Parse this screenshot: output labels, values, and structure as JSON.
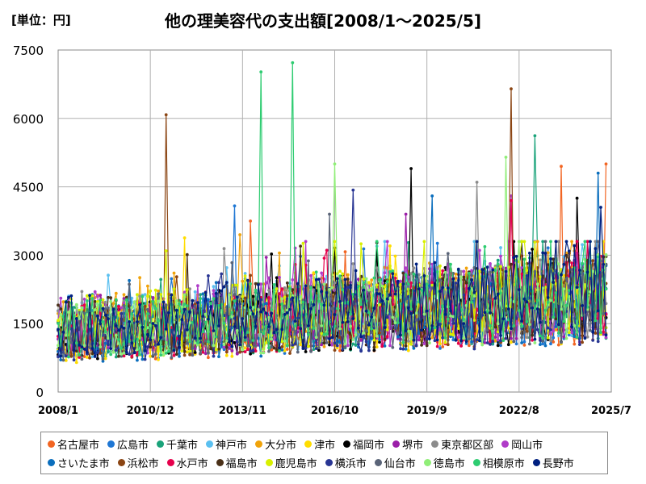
{
  "unit_label": "[単位：円]",
  "chart_data": {
    "type": "line",
    "title": "他の理美容代の支出額[2008/1～2025/5]",
    "xlabel": "",
    "ylabel": "",
    "x_ticks": [
      "2008/1",
      "2010/12",
      "2013/11",
      "2016/10",
      "2019/9",
      "2022/8",
      "2025/7"
    ],
    "x_range": [
      "2008/1",
      "2025/7"
    ],
    "ylim": [
      0,
      7500
    ],
    "y_ticks": [
      0,
      1500,
      3000,
      4500,
      6000,
      7500
    ],
    "grid": true,
    "legend_position": "bottom",
    "series": [
      {
        "name": "名古屋市",
        "color": "#f26522",
        "peaks": [
          {
            "x": "2014/2",
            "y": 3750
          },
          {
            "x": "2023/12",
            "y": 4950
          },
          {
            "x": "2025/5",
            "y": 5000
          }
        ]
      },
      {
        "name": "広島市",
        "color": "#1f77d4",
        "peaks": [
          {
            "x": "2013/8",
            "y": 4080
          }
        ]
      },
      {
        "name": "千葉市",
        "color": "#1aa37a",
        "peaks": [
          {
            "x": "2023/2",
            "y": 5620
          }
        ]
      },
      {
        "name": "神戸市",
        "color": "#5bc0f0",
        "peaks": [
          {
            "x": "2018/2",
            "y": 3200
          }
        ]
      },
      {
        "name": "大分市",
        "color": "#f0a30a",
        "peaks": [
          {
            "x": "2013/10",
            "y": 3450
          }
        ]
      },
      {
        "name": "津市",
        "color": "#ffdd00",
        "peaks": [
          {
            "x": "2012/1",
            "y": 3380
          }
        ]
      },
      {
        "name": "福岡市",
        "color": "#000000",
        "peaks": [
          {
            "x": "2019/3",
            "y": 4900
          },
          {
            "x": "2024/6",
            "y": 4250
          }
        ]
      },
      {
        "name": "堺市",
        "color": "#9b1fa8",
        "peaks": [
          {
            "x": "2019/1",
            "y": 3900
          }
        ]
      },
      {
        "name": "東京都区部",
        "color": "#8c8c8c",
        "peaks": [
          {
            "x": "2021/4",
            "y": 4600
          }
        ]
      },
      {
        "name": "岡山市",
        "color": "#b03cc8",
        "peaks": [
          {
            "x": "2022/5",
            "y": 4300
          }
        ]
      },
      {
        "name": "さいたま市",
        "color": "#0a6ebd",
        "peaks": [
          {
            "x": "2019/11",
            "y": 4300
          },
          {
            "x": "2025/2",
            "y": 4800
          }
        ]
      },
      {
        "name": "浜松市",
        "color": "#8b4513",
        "peaks": [
          {
            "x": "2011/6",
            "y": 6080
          },
          {
            "x": "2022/5",
            "y": 6650
          }
        ]
      },
      {
        "name": "水戸市",
        "color": "#e6004c",
        "peaks": [
          {
            "x": "2022/5",
            "y": 4200
          }
        ]
      },
      {
        "name": "福島市",
        "color": "#4a3018",
        "peaks": [
          {
            "x": "2015/9",
            "y": 3200
          }
        ]
      },
      {
        "name": "鹿児島市",
        "color": "#d8f000",
        "peaks": [
          {
            "x": "2017/8",
            "y": 3250
          }
        ]
      },
      {
        "name": "横浜市",
        "color": "#283593",
        "peaks": [
          {
            "x": "2017/5",
            "y": 4430
          }
        ]
      },
      {
        "name": "仙台市",
        "color": "#5a6478",
        "peaks": [
          {
            "x": "2016/8",
            "y": 3900
          }
        ]
      },
      {
        "name": "徳島市",
        "color": "#90ee78",
        "peaks": [
          {
            "x": "2016/10",
            "y": 5000
          },
          {
            "x": "2022/3",
            "y": 5150
          }
        ]
      },
      {
        "name": "相模原市",
        "color": "#2ecc71",
        "peaks": [
          {
            "x": "2014/6",
            "y": 7020
          },
          {
            "x": "2015/6",
            "y": 7220
          }
        ]
      },
      {
        "name": "長野市",
        "color": "#002080",
        "peaks": [
          {
            "x": "2025/3",
            "y": 4050
          }
        ]
      }
    ]
  }
}
